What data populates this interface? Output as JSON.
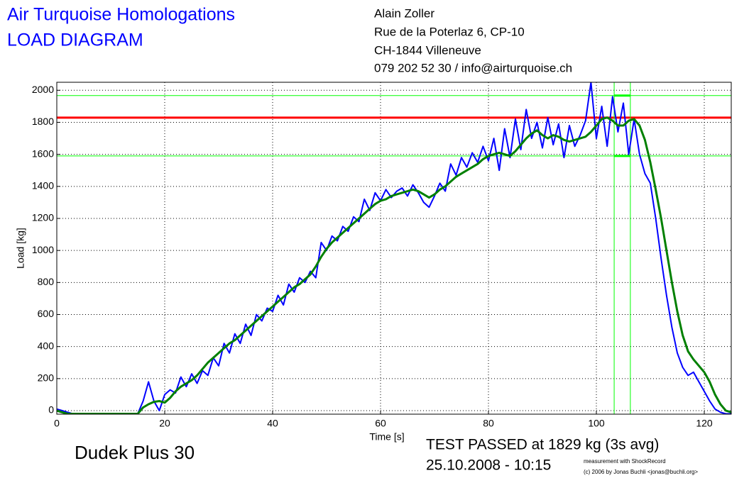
{
  "chart_data": {
    "type": "line",
    "title": "Air Turquoise Homologations",
    "subtitle": "LOAD DIAGRAM",
    "address": [
      "Alain Zoller",
      "Rue de la Poterlaz 6, CP-10",
      "CH-1844 Villeneuve",
      "079 202 52 30 / info@airturquoise.ch"
    ],
    "annotations": [
      "Dudek Plus 30",
      "TEST PASSED at 1829 kg (3s avg)",
      "25.10.2008 - 10:15",
      "measurement with ShockRecord",
      "(c) 2006 by Jonas Buchli <jonas@buchli.org>"
    ],
    "x_label": "Time [s]",
    "y_label": "Load [kg]",
    "xlim": [
      0,
      125
    ],
    "ylim": [
      -22,
      2050
    ],
    "xticks": [
      0,
      20,
      40,
      60,
      80,
      100,
      120
    ],
    "yticks": [
      0,
      200,
      400,
      600,
      800,
      1000,
      1200,
      1400,
      1600,
      1800,
      2000
    ],
    "grid": true,
    "x": [
      0,
      1,
      2,
      3,
      4,
      5,
      6,
      7,
      8,
      9,
      10,
      11,
      12,
      13,
      14,
      15,
      16,
      17,
      18,
      19,
      20,
      21,
      22,
      23,
      24,
      25,
      26,
      27,
      28,
      29,
      30,
      31,
      32,
      33,
      34,
      35,
      36,
      37,
      38,
      39,
      40,
      41,
      42,
      43,
      44,
      45,
      46,
      47,
      48,
      49,
      50,
      51,
      52,
      53,
      54,
      55,
      56,
      57,
      58,
      59,
      60,
      61,
      62,
      63,
      64,
      65,
      66,
      67,
      68,
      69,
      70,
      71,
      72,
      73,
      74,
      75,
      76,
      77,
      78,
      79,
      80,
      81,
      82,
      83,
      84,
      85,
      86,
      87,
      88,
      89,
      90,
      91,
      92,
      93,
      94,
      95,
      96,
      97,
      98,
      99,
      100,
      101,
      102,
      103,
      104,
      105,
      106,
      107,
      108,
      109,
      110,
      111,
      112,
      113,
      114,
      115,
      116,
      117,
      118,
      119,
      120,
      121,
      122,
      123,
      124,
      125
    ],
    "series": [
      {
        "color": "#0000ff",
        "width": 2,
        "values": [
          10,
          0,
          -10,
          -20,
          -20,
          -20,
          -20,
          -20,
          -20,
          -20,
          -20,
          -20,
          -20,
          -20,
          -20,
          -20,
          60,
          180,
          60,
          0,
          100,
          130,
          110,
          210,
          150,
          230,
          170,
          250,
          220,
          330,
          280,
          420,
          360,
          480,
          420,
          540,
          470,
          600,
          560,
          640,
          620,
          720,
          660,
          790,
          740,
          830,
          800,
          870,
          830,
          1050,
          1000,
          1090,
          1060,
          1150,
          1120,
          1210,
          1180,
          1320,
          1250,
          1360,
          1310,
          1380,
          1330,
          1370,
          1390,
          1340,
          1410,
          1360,
          1300,
          1270,
          1340,
          1420,
          1370,
          1540,
          1470,
          1580,
          1520,
          1610,
          1550,
          1650,
          1560,
          1700,
          1500,
          1760,
          1580,
          1820,
          1630,
          1880,
          1700,
          1800,
          1640,
          1830,
          1660,
          1790,
          1580,
          1780,
          1650,
          1720,
          1810,
          2050,
          1700,
          1900,
          1650,
          1960,
          1740,
          1920,
          1600,
          1820,
          1600,
          1480,
          1420,
          1200,
          950,
          720,
          520,
          360,
          270,
          220,
          240,
          180,
          120,
          60,
          10,
          -10,
          -20,
          -20
        ]
      },
      {
        "color": "#008000",
        "width": 3,
        "values": [
          0,
          -10,
          -20,
          -20,
          -20,
          -20,
          -20,
          -20,
          -20,
          -20,
          -20,
          -20,
          -20,
          -20,
          -20,
          -20,
          20,
          40,
          55,
          60,
          50,
          80,
          120,
          150,
          170,
          190,
          220,
          260,
          300,
          330,
          360,
          390,
          420,
          440,
          470,
          500,
          530,
          560,
          590,
          620,
          650,
          680,
          710,
          740,
          770,
          790,
          820,
          850,
          900,
          960,
          1010,
          1050,
          1080,
          1110,
          1140,
          1170,
          1200,
          1230,
          1260,
          1290,
          1310,
          1320,
          1340,
          1350,
          1360,
          1370,
          1380,
          1370,
          1350,
          1330,
          1350,
          1380,
          1400,
          1430,
          1460,
          1480,
          1500,
          1520,
          1540,
          1570,
          1590,
          1600,
          1610,
          1600,
          1590,
          1620,
          1660,
          1700,
          1730,
          1750,
          1720,
          1700,
          1720,
          1710,
          1690,
          1680,
          1690,
          1700,
          1710,
          1740,
          1780,
          1820,
          1830,
          1810,
          1780,
          1780,
          1810,
          1820,
          1780,
          1690,
          1550,
          1380,
          1200,
          1000,
          800,
          620,
          470,
          370,
          320,
          280,
          240,
          180,
          100,
          40,
          0,
          -10
        ]
      }
    ],
    "hlines": [
      {
        "value": 1967,
        "color": "#00ff00",
        "width": 1
      },
      {
        "value": 1590,
        "color": "#00ff00",
        "width": 1
      },
      {
        "value": 1829,
        "color": "#ff0000",
        "width": 3
      }
    ],
    "vlines": [
      {
        "value": 103.3,
        "color": "#00ff00"
      },
      {
        "value": 106.3,
        "color": "#00ff00"
      }
    ]
  }
}
